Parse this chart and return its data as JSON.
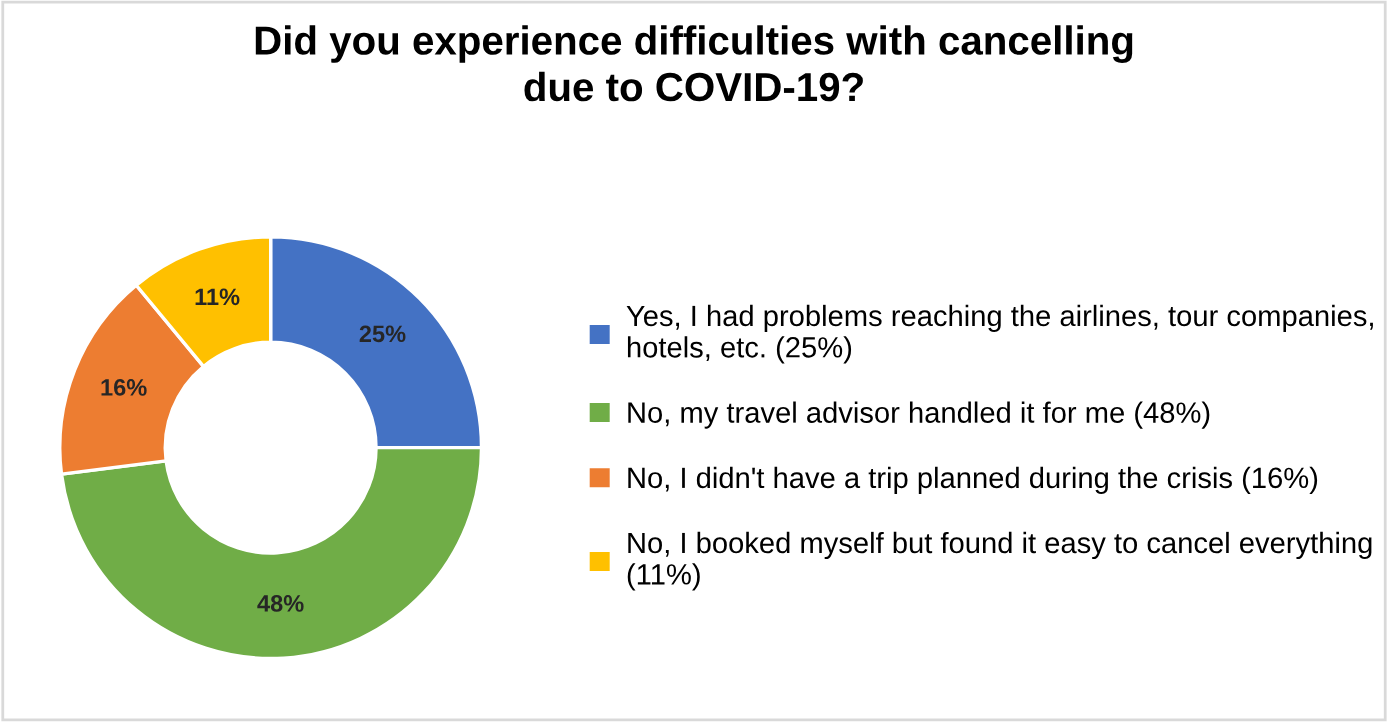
{
  "chart_data": {
    "type": "donut",
    "title": "Did you experience difficulties with cancelling due to COVID-19?",
    "categories": [
      "Yes, I had problems reaching the airlines, tour companies, hotels, etc. (25%)",
      "No, my travel advisor handled it for me (48%)",
      "No, I didn't have a trip planned during the crisis (16%)",
      "No, I booked myself but found it easy to cancel everything (11%)"
    ],
    "values": [
      25,
      48,
      16,
      11
    ],
    "colors": [
      "#4472c4",
      "#70ad47",
      "#ed7d31",
      "#ffc000"
    ],
    "value_labels": [
      "25%",
      "48%",
      "16%",
      "11%"
    ],
    "legend": "right"
  }
}
